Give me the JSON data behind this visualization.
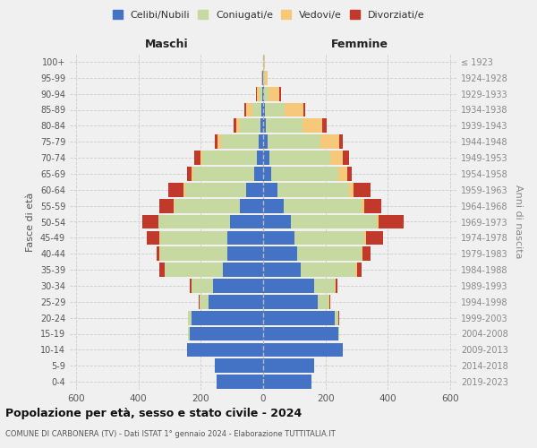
{
  "age_groups": [
    "0-4",
    "5-9",
    "10-14",
    "15-19",
    "20-24",
    "25-29",
    "30-34",
    "35-39",
    "40-44",
    "45-49",
    "50-54",
    "55-59",
    "60-64",
    "65-69",
    "70-74",
    "75-79",
    "80-84",
    "85-89",
    "90-94",
    "95-99",
    "100+"
  ],
  "birth_years": [
    "2019-2023",
    "2014-2018",
    "2009-2013",
    "2004-2008",
    "1999-2003",
    "1994-1998",
    "1989-1993",
    "1984-1988",
    "1979-1983",
    "1974-1978",
    "1969-1973",
    "1964-1968",
    "1959-1963",
    "1954-1958",
    "1949-1953",
    "1944-1948",
    "1939-1943",
    "1934-1938",
    "1929-1933",
    "1924-1928",
    "≤ 1923"
  ],
  "male_celibe": [
    150,
    155,
    245,
    235,
    230,
    175,
    160,
    130,
    115,
    115,
    105,
    75,
    55,
    30,
    20,
    15,
    10,
    5,
    3,
    2,
    0
  ],
  "male_coniugato": [
    0,
    0,
    0,
    5,
    10,
    30,
    70,
    185,
    215,
    215,
    230,
    210,
    195,
    195,
    175,
    120,
    65,
    30,
    8,
    2,
    0
  ],
  "male_vedovo": [
    0,
    0,
    0,
    0,
    0,
    0,
    0,
    2,
    2,
    2,
    2,
    3,
    5,
    5,
    5,
    10,
    10,
    20,
    8,
    2,
    0
  ],
  "male_divorziato": [
    0,
    0,
    0,
    0,
    2,
    3,
    5,
    15,
    10,
    40,
    50,
    45,
    50,
    15,
    20,
    10,
    10,
    5,
    3,
    0,
    0
  ],
  "female_celibe": [
    155,
    165,
    255,
    240,
    230,
    175,
    165,
    120,
    110,
    100,
    90,
    65,
    45,
    25,
    20,
    15,
    10,
    5,
    2,
    0,
    0
  ],
  "female_coniugato": [
    0,
    0,
    0,
    5,
    12,
    35,
    65,
    175,
    205,
    225,
    275,
    250,
    230,
    215,
    195,
    170,
    115,
    65,
    15,
    5,
    2
  ],
  "female_vedovo": [
    0,
    0,
    0,
    0,
    0,
    2,
    2,
    5,
    5,
    5,
    5,
    10,
    15,
    30,
    40,
    60,
    65,
    60,
    35,
    10,
    3
  ],
  "female_divorziato": [
    0,
    0,
    0,
    0,
    2,
    3,
    5,
    15,
    25,
    55,
    80,
    55,
    55,
    15,
    20,
    10,
    15,
    5,
    5,
    0,
    0
  ],
  "colors": {
    "celibe": "#4472c4",
    "coniugato": "#c5d9a0",
    "vedovo": "#f5c87a",
    "divorziato": "#c0392b"
  },
  "title": "Popolazione per età, sesso e stato civile - 2024",
  "subtitle": "COMUNE DI CARBONERA (TV) - Dati ISTAT 1° gennaio 2024 - Elaborazione TUTTITALIA.IT",
  "xlabel_left": "Maschi",
  "xlabel_right": "Femmine",
  "ylabel_left": "Fasce di età",
  "ylabel_right": "Anni di nascita",
  "xlim": 620,
  "background_color": "#f0f0f0",
  "legend_labels": [
    "Celibi/Nubili",
    "Coniugati/e",
    "Vedovi/e",
    "Divorziati/e"
  ]
}
